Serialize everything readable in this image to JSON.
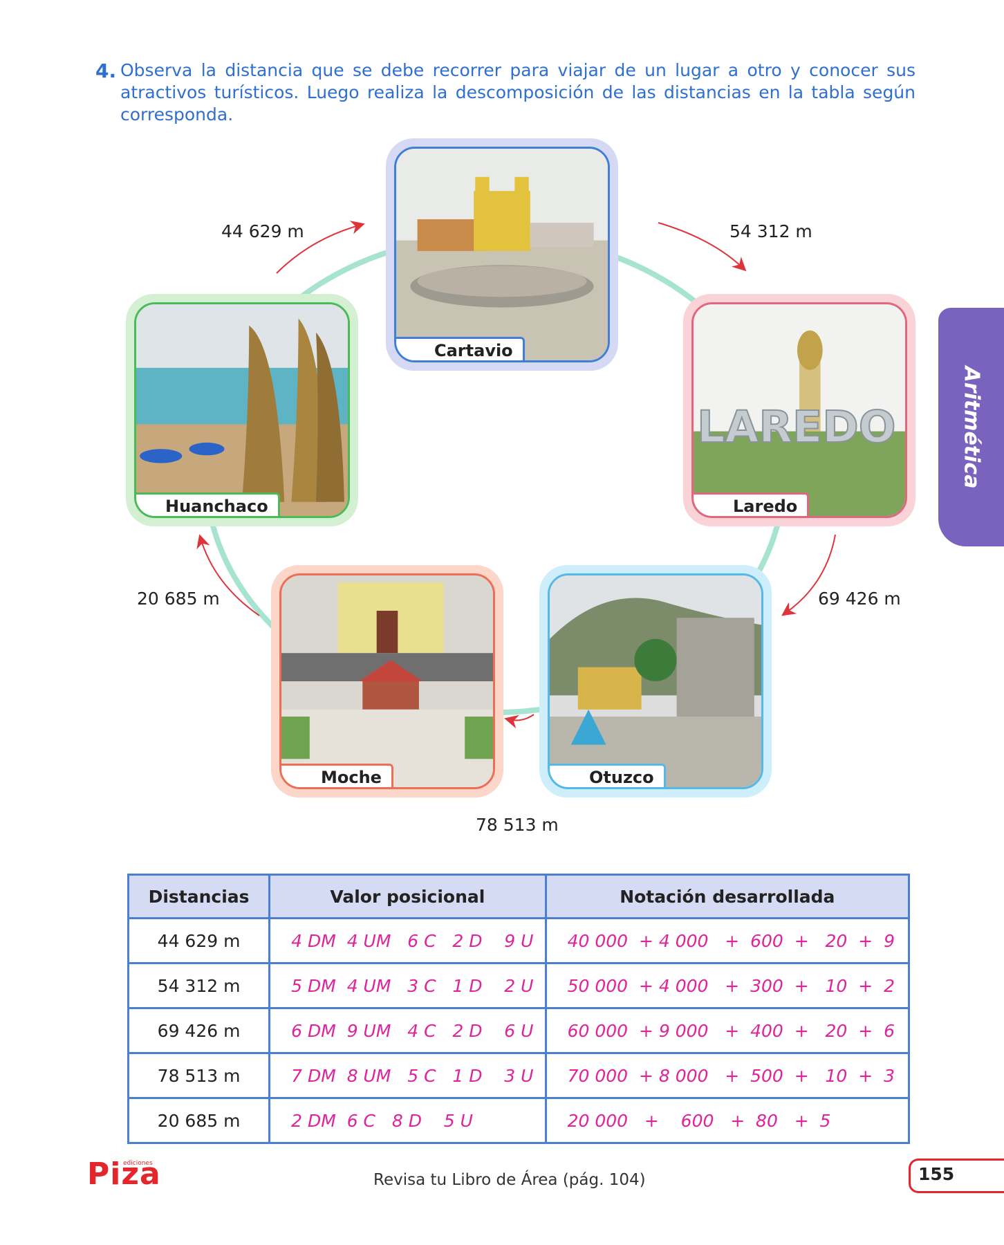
{
  "exercise": {
    "number": "4.",
    "text": "Observa la distancia que se debe recorrer para viajar de un lugar a otro y conocer sus atractivos turísticos. Luego realiza la descomposición de las distancias en la tabla según corresponda."
  },
  "side_tab": {
    "label": "Aritmética",
    "color": "#7a63bf"
  },
  "places": [
    {
      "name": "Cartavio",
      "frame_color": "#d6d9f3",
      "border_color": "#3f7fd6"
    },
    {
      "name": "Laredo",
      "frame_color": "#f9d3d8",
      "border_color": "#e0677d"
    },
    {
      "name": "Otuzco",
      "frame_color": "#cdeefa",
      "border_color": "#55b9e8"
    },
    {
      "name": "Moche",
      "frame_color": "#fbd6c9",
      "border_color": "#ee6d55"
    },
    {
      "name": "Huanchaco",
      "frame_color": "#d4f0d2",
      "border_color": "#4bbb5a"
    }
  ],
  "distances": {
    "huanchaco_cartavio": "44 629  m",
    "cartavio_laredo": "54 312  m",
    "laredo_otuzco": "69 426  m",
    "otuzco_moche": "78 513  m",
    "moche_huanchaco": "20 685  m"
  },
  "table": {
    "headers": [
      "Distancias",
      "Valor posicional",
      "Notación desarrollada"
    ],
    "rows": [
      {
        "distance": "44 629  m",
        "positional": "4 DM  4 UM   6 C   2 D    9 U",
        "expanded": "40 000  + 4 000   +  600  +   20  +  9"
      },
      {
        "distance": "54 312  m",
        "positional": "5 DM  4 UM   3 C   1 D    2 U",
        "expanded": "50 000  + 4 000   +  300  +   10  +  2"
      },
      {
        "distance": "69 426  m",
        "positional": "6 DM  9 UM   4 C   2 D    6 U",
        "expanded": "60 000  + 9 000   +  400  +   20  +  6"
      },
      {
        "distance": "78 513  m",
        "positional": "7 DM  8 UM   5 C   1 D    3 U",
        "expanded": "70 000  + 8 000   +  500  +   10  +  3"
      },
      {
        "distance": "20 685  m",
        "positional": "2 DM  6 C   8 D    5 U",
        "expanded": "20 000   +    600   +  80   +  5"
      }
    ]
  },
  "footer": {
    "logo": "Piza",
    "logo_small": "ediciones",
    "note": "Revisa tu Libro de Área (pág. 104)",
    "page": "155"
  },
  "colors": {
    "instruction": "#2f6fcf",
    "answer": "#e0239a",
    "table_border": "#4a7fd1",
    "arrow": "#e0323a",
    "ring": "#a7e3d1"
  }
}
